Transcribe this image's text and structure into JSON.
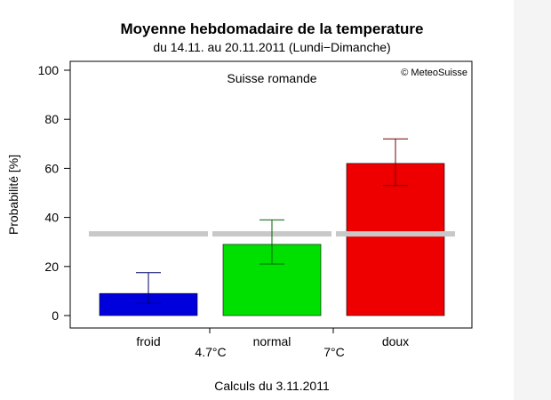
{
  "chart_data": {
    "type": "bar",
    "title": "Moyenne hebdomadaire de la temperature",
    "subtitle": "du 14.11. au 20.11.2011 (Lundi−Dimanche)",
    "region": "Suisse romande",
    "copyright": "© MeteoSuisse",
    "ylabel": "Probabilité [%]",
    "footer": "Calculs du 3.11.2011",
    "ylim": [
      0,
      100
    ],
    "yticks": [
      "0",
      "20",
      "40",
      "60",
      "80",
      "100"
    ],
    "ytick_values": [
      0,
      20,
      40,
      60,
      80,
      100
    ],
    "categories": [
      "froid",
      "normal",
      "doux"
    ],
    "values": [
      9,
      29,
      62
    ],
    "error_low": [
      5,
      21,
      53
    ],
    "error_high": [
      17.5,
      39,
      72
    ],
    "colors": [
      "#0000dd",
      "#00e000",
      "#ee0000"
    ],
    "error_colors": [
      "#000066",
      "#006600",
      "#770000"
    ],
    "climatology": 33.3,
    "climatology_color": "#c8c8c8",
    "thresholds": [
      "4.7°C",
      "7°C"
    ],
    "grid": false
  }
}
